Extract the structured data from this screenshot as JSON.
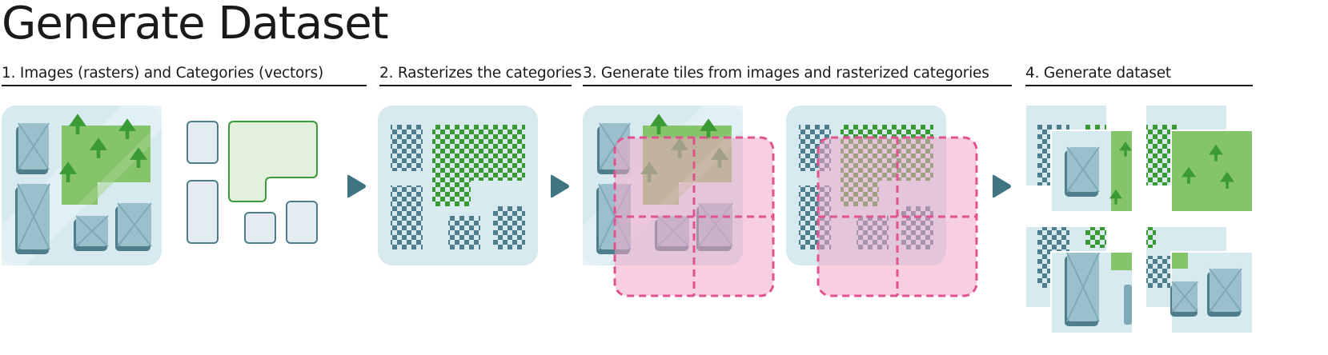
{
  "title": "Generate Dataset",
  "steps": [
    {
      "label": "1. Images (rasters) and Categories (vectors)"
    },
    {
      "label": "2. Rasterizes the categories"
    },
    {
      "label": "3. Generate tiles from images and rasterized categories"
    },
    {
      "label": "4. Generate dataset"
    }
  ],
  "colors": {
    "tile_bg": "#d6eaf0",
    "tile_shadow": "#c7e0e8",
    "building": "#7fa9b6",
    "building_dark": "#4f7d8b",
    "green": "#86c46b",
    "tree": "#3b9a36",
    "vector_stroke": "#4f7d8b",
    "vector_fill": "#e4ecf2",
    "vector_green_stroke": "#3d9a3c",
    "vector_green_fill": "#e3f1dc",
    "pink": "#f3a6c9",
    "pink_dash": "#e0538f",
    "arrow": "#3f7581",
    "text": "#1a1a1a"
  },
  "icons": [
    "arrow-right-icon",
    "tree-icon",
    "building-icon"
  ]
}
